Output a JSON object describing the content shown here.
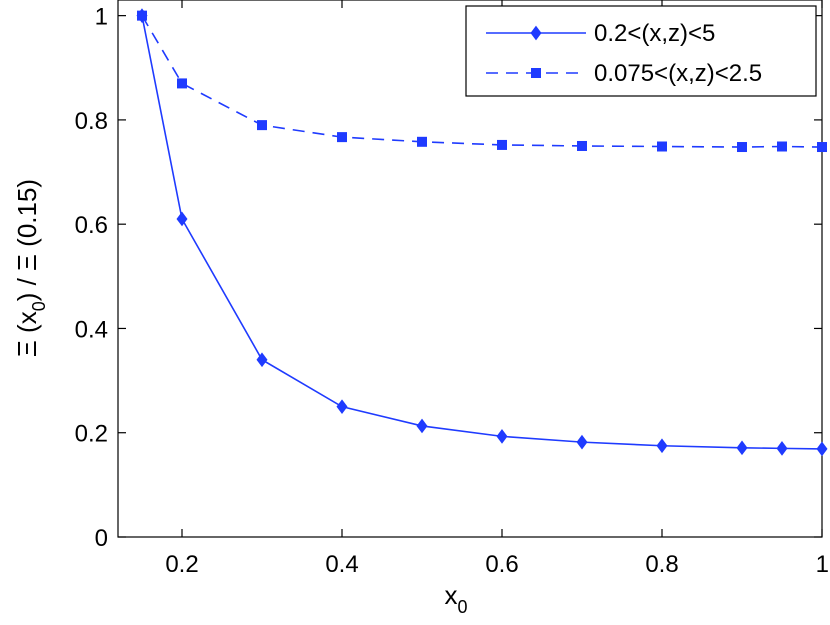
{
  "chart_data": {
    "type": "line",
    "title": "",
    "xlabel": "x",
    "xlabel_sub": "0",
    "ylabel_parts": [
      "Ξ (x",
      "0",
      ") / Ξ (0.15)"
    ],
    "xlim": [
      0.12,
      1.0
    ],
    "ylim": [
      0,
      1.03
    ],
    "xticks": [
      0.2,
      0.4,
      0.6,
      0.8,
      1
    ],
    "xtick_labels": [
      "0.2",
      "0.4",
      "0.6",
      "0.8",
      "1"
    ],
    "yticks": [
      0,
      0.2,
      0.4,
      0.6,
      0.8,
      1
    ],
    "ytick_labels": [
      "0",
      "0.2",
      "0.4",
      "0.6",
      "0.8",
      "1"
    ],
    "grid": false,
    "legend_position": "top-right",
    "series": [
      {
        "name": "0.2<(x,z)<5",
        "line_style": "solid",
        "marker": "diamond",
        "color": "#1f3bff",
        "x": [
          0.15,
          0.2,
          0.3,
          0.4,
          0.5,
          0.6,
          0.7,
          0.8,
          0.9,
          0.95,
          1.0
        ],
        "y": [
          1.0,
          0.61,
          0.34,
          0.25,
          0.213,
          0.193,
          0.182,
          0.175,
          0.171,
          0.17,
          0.169
        ]
      },
      {
        "name": "0.075<(x,z)<2.5",
        "line_style": "dashed",
        "marker": "square",
        "color": "#1f3bff",
        "x": [
          0.15,
          0.2,
          0.3,
          0.4,
          0.5,
          0.6,
          0.7,
          0.8,
          0.9,
          0.95,
          1.0
        ],
        "y": [
          1.0,
          0.87,
          0.79,
          0.767,
          0.758,
          0.752,
          0.75,
          0.749,
          0.748,
          0.749,
          0.748
        ]
      }
    ]
  }
}
